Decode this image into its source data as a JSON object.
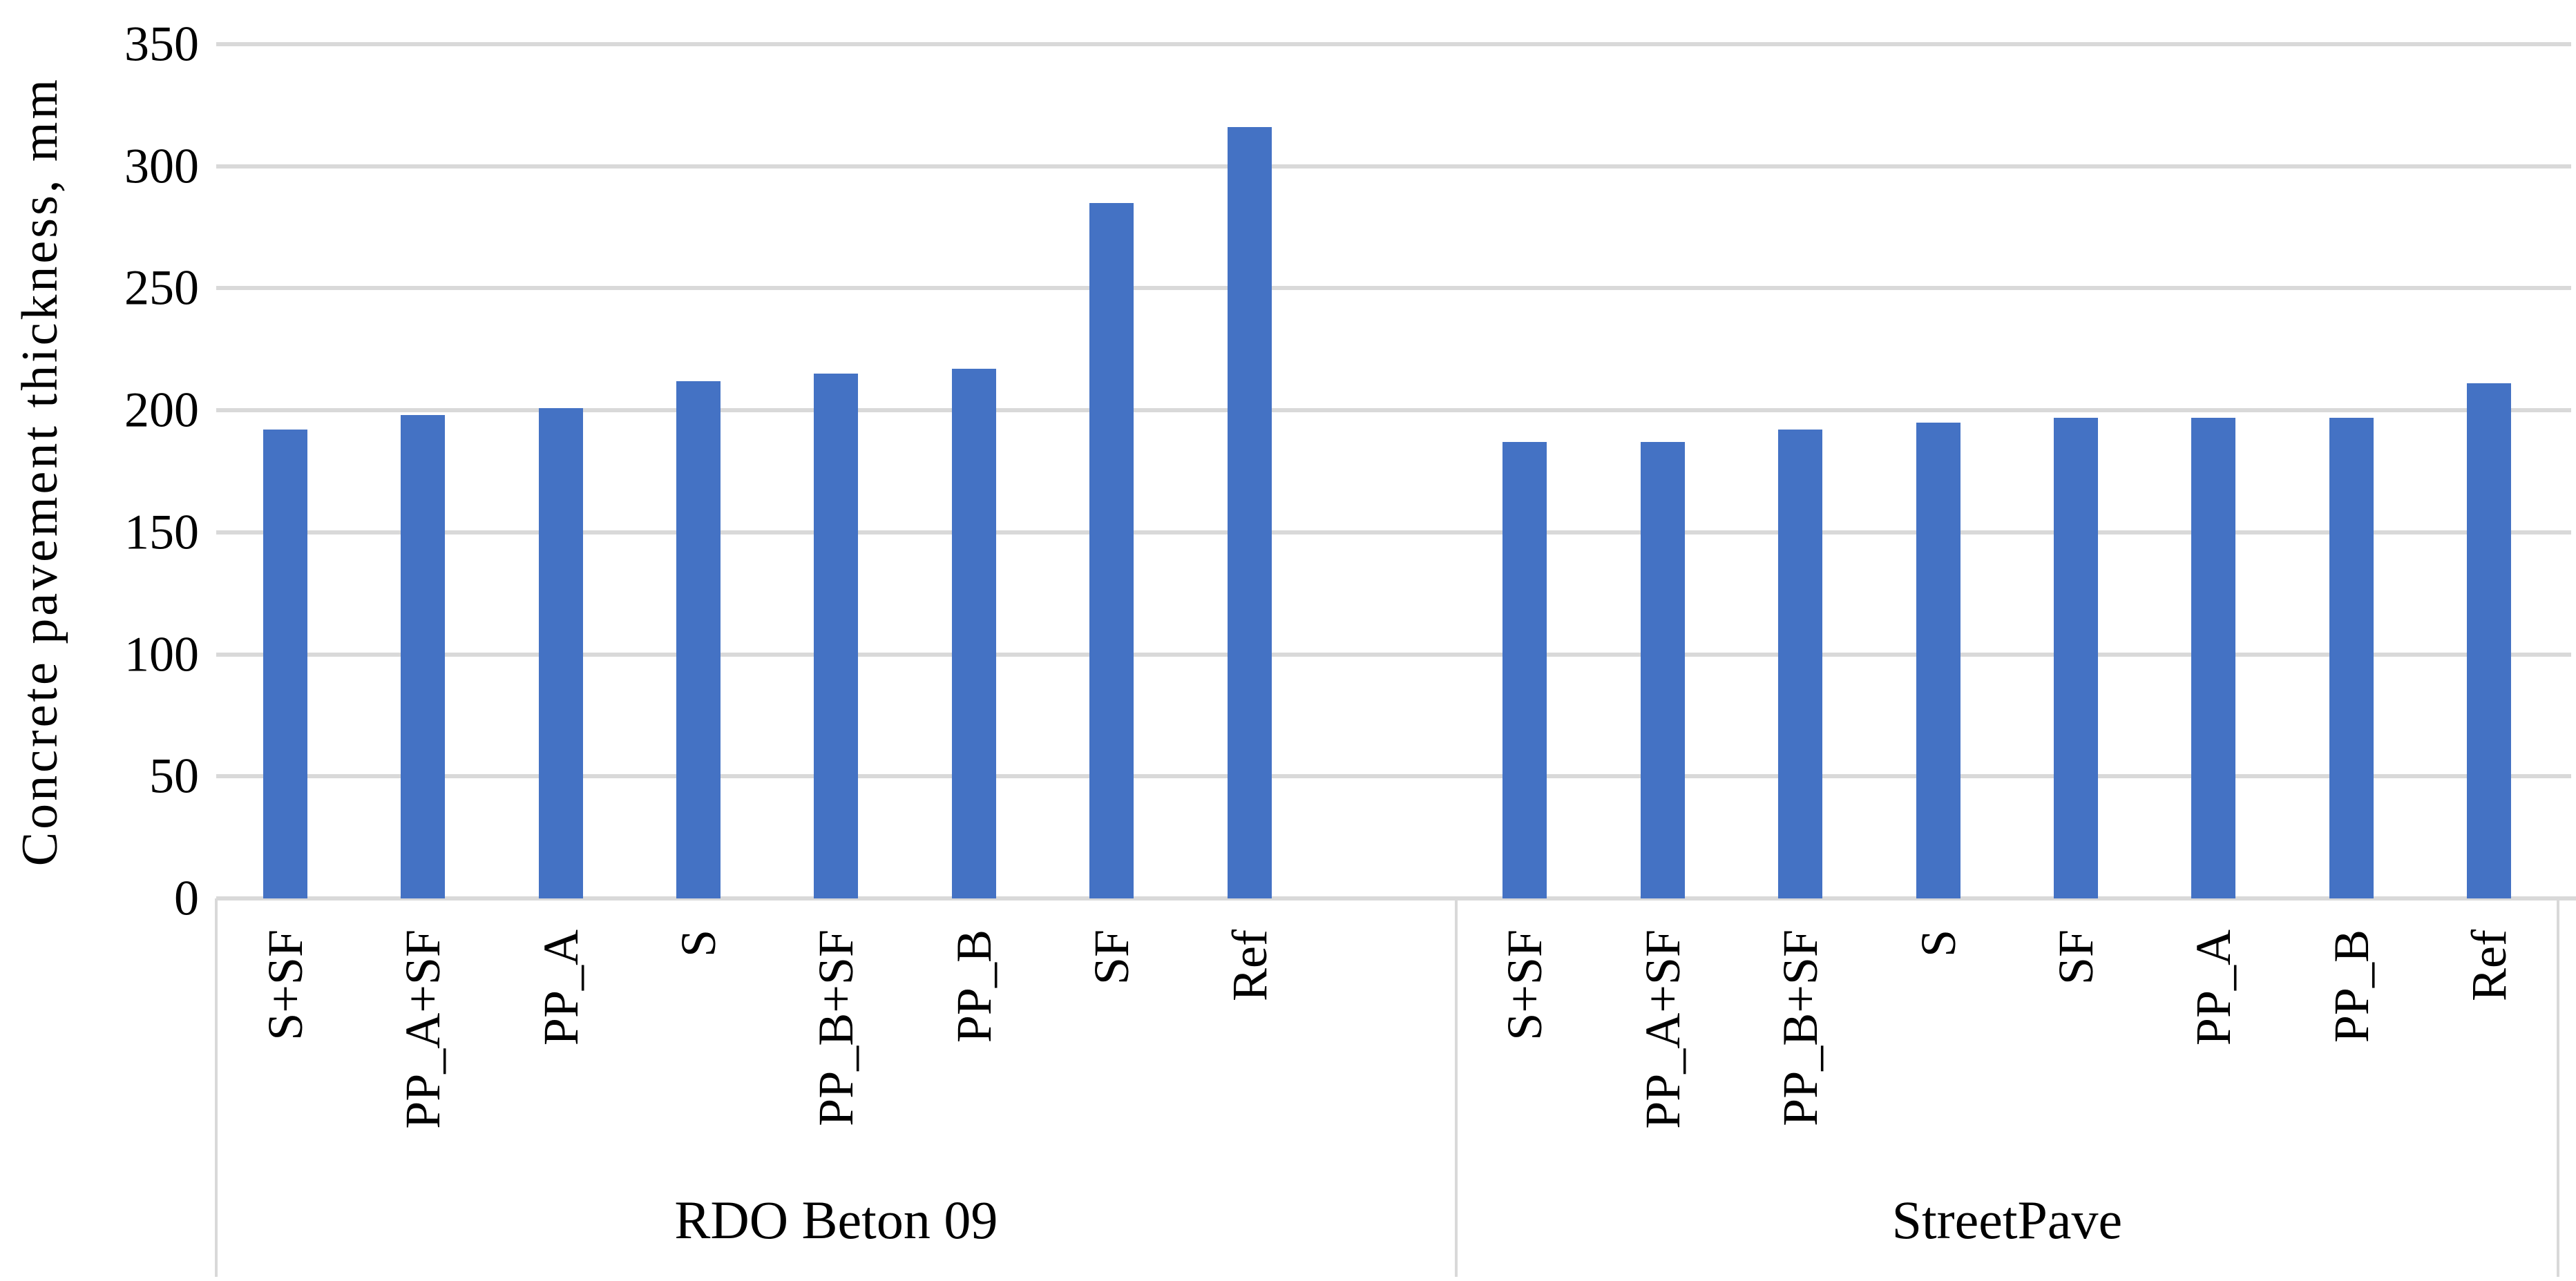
{
  "chart_data": {
    "type": "bar",
    "title": "",
    "ylabel": "Concrete pavement thickness, mm",
    "xlabel": "",
    "ylim": [
      0,
      350
    ],
    "yticks": [
      0,
      50,
      100,
      150,
      200,
      250,
      300,
      350
    ],
    "y_unit": "mm",
    "grid": "horizontal",
    "legend": "none",
    "bar_color": "#4472C4",
    "gridline_color": "#D9D9D9",
    "axis_line_color": "#D9D9D9",
    "text_color": "#000000",
    "groups": [
      {
        "label": "RDO Beton 09",
        "categories": [
          "S+SF",
          "PP_A+SF",
          "PP_A",
          "S",
          "PP_B+SF",
          "PP_B",
          "SF",
          "Ref"
        ],
        "values": [
          192,
          198,
          201,
          212,
          215,
          217,
          285,
          316
        ],
        "slots": 9
      },
      {
        "label": "StreetPave",
        "categories": [
          "S+SF",
          "PP_A+SF",
          "PP_B+SF",
          "S",
          "SF",
          "PP_A",
          "PP_B",
          "Ref"
        ],
        "values": [
          187,
          187,
          192,
          195,
          197,
          197,
          197,
          211
        ],
        "slots": 8
      }
    ]
  }
}
